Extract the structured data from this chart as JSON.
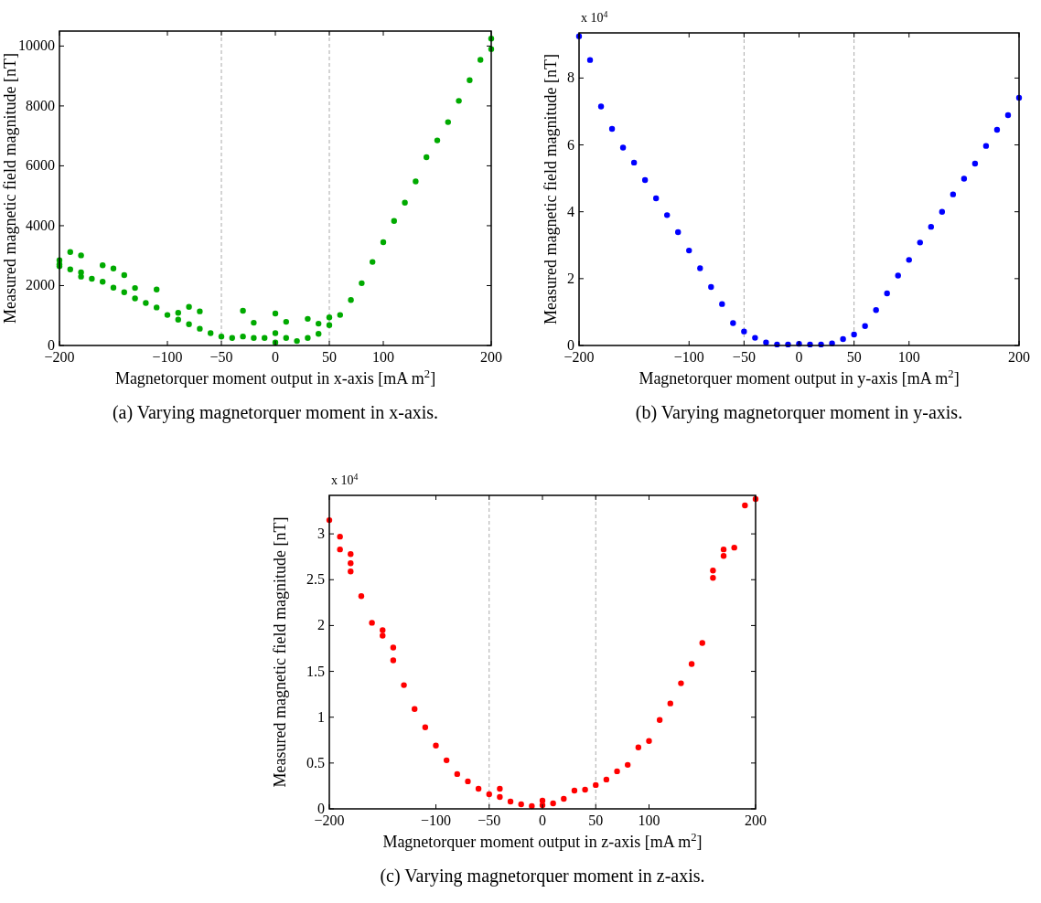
{
  "chart_data": [
    {
      "type": "scatter",
      "xlabel": "Magnetorquer moment output in x-axis [mA m$^{2}$]",
      "ylabel": "Measured magnetic field magnitude [nT]",
      "annotations": [
        "(a) Varying magnetorquer moment in x-axis."
      ],
      "xlim": [
        -200,
        200
      ],
      "ylim": [
        0,
        10500
      ],
      "xticks": [
        -200,
        -100,
        -50,
        0,
        50,
        100,
        200
      ],
      "yticks": [
        0,
        2000,
        4000,
        6000,
        8000,
        10000
      ],
      "marker": "circle",
      "grid": false,
      "ref_lines": [
        {
          "axis": "x",
          "value": -50,
          "color": "#aaaaaa",
          "line_style": "dashed"
        },
        {
          "axis": "x",
          "value": 50,
          "color": "#aaaaaa",
          "line_style": "dashed"
        }
      ],
      "series": [
        {
          "color": "#00aa00",
          "x": [
            -200,
            -200,
            -200,
            -190,
            -190,
            -180,
            -180,
            -180,
            -170,
            -160,
            -160,
            -150,
            -150,
            -140,
            -140,
            -130,
            -130,
            -120,
            -110,
            -110,
            -100,
            -90,
            -90,
            -80,
            -80,
            -70,
            -70,
            -60,
            -50,
            -40,
            -30,
            -30,
            -20,
            -20,
            -10,
            0,
            0,
            0,
            10,
            10,
            20,
            30,
            30,
            40,
            40,
            50,
            50,
            60,
            70,
            80,
            90,
            100,
            110,
            120,
            130,
            140,
            150,
            160,
            170,
            180,
            190,
            200,
            200
          ],
          "values": [
            2710,
            2850,
            2650,
            2540,
            3120,
            2440,
            2300,
            3010,
            2230,
            2130,
            2680,
            1930,
            2570,
            1780,
            2350,
            1570,
            1920,
            1420,
            1270,
            1870,
            1020,
            860,
            1090,
            710,
            1290,
            560,
            1140,
            410,
            300,
            250,
            300,
            1160,
            250,
            760,
            250,
            410,
            1070,
            100,
            250,
            790,
            150,
            250,
            890,
            390,
            730,
            680,
            940,
            1020,
            1520,
            2080,
            2790,
            3450,
            4160,
            4770,
            5480,
            6290,
            6850,
            7460,
            8170,
            8860,
            9540,
            10250,
            9900
          ]
        }
      ]
    },
    {
      "type": "scatter",
      "xlabel": "Magnetorquer moment output in y-axis [mA m$^{2}$]",
      "ylabel": "Measured magnetic field magnitude [nT]",
      "annotations": [
        "x 10$^{4}$",
        "(b) Varying magnetorquer moment in y-axis."
      ],
      "xlim": [
        -200,
        200
      ],
      "ylim": [
        0,
        9.35
      ],
      "xticks": [
        -200,
        -100,
        -50,
        0,
        50,
        100,
        200
      ],
      "yticks": [
        0,
        2,
        4,
        6,
        8
      ],
      "marker": "circle",
      "grid": false,
      "ref_lines": [
        {
          "axis": "x",
          "value": -50,
          "color": "#aaaaaa",
          "line_style": "dashed"
        },
        {
          "axis": "x",
          "value": 50,
          "color": "#aaaaaa",
          "line_style": "dashed"
        }
      ],
      "series": [
        {
          "color": "#0000ff",
          "x": [
            -200,
            -190,
            -180,
            -170,
            -160,
            -150,
            -140,
            -130,
            -120,
            -110,
            -100,
            -90,
            -80,
            -70,
            -60,
            -50,
            -40,
            -30,
            -20,
            -10,
            0,
            10,
            20,
            30,
            40,
            50,
            60,
            70,
            80,
            90,
            100,
            110,
            120,
            130,
            140,
            150,
            160,
            170,
            180,
            190,
            200
          ],
          "values": [
            9.25,
            8.54,
            7.15,
            6.48,
            5.92,
            5.47,
            4.95,
            4.4,
            3.9,
            3.39,
            2.84,
            2.31,
            1.75,
            1.24,
            0.67,
            0.42,
            0.23,
            0.09,
            0.03,
            0.03,
            0.05,
            0.03,
            0.03,
            0.06,
            0.19,
            0.33,
            0.58,
            1.06,
            1.56,
            2.09,
            2.56,
            3.08,
            3.55,
            4.0,
            4.52,
            4.99,
            5.44,
            5.97,
            6.45,
            6.89,
            7.41
          ]
        }
      ]
    },
    {
      "type": "scatter",
      "xlabel": "Magnetorquer moment output in z-axis [mA m$^{2}$]",
      "ylabel": "Measured magnetic field magnitude [nT]",
      "annotations": [
        "x 10$^{4}$",
        "(c) Varying magnetorquer moment in z-axis."
      ],
      "xlim": [
        -200,
        200
      ],
      "ylim": [
        0,
        3.42
      ],
      "xticks": [
        -200,
        -100,
        -50,
        0,
        50,
        100,
        200
      ],
      "yticks": [
        0,
        0.5,
        1,
        1.5,
        2,
        2.5,
        3
      ],
      "marker": "circle",
      "grid": false,
      "ref_lines": [
        {
          "axis": "x",
          "value": -50,
          "color": "#aaaaaa",
          "line_style": "dashed"
        },
        {
          "axis": "x",
          "value": 50,
          "color": "#aaaaaa",
          "line_style": "dashed"
        }
      ],
      "series": [
        {
          "color": "#ff0000",
          "x": [
            -200,
            -190,
            -190,
            -180,
            -180,
            -180,
            -170,
            -160,
            -150,
            -150,
            -140,
            -140,
            -130,
            -120,
            -110,
            -100,
            -90,
            -80,
            -70,
            -60,
            -50,
            -40,
            -40,
            -30,
            -20,
            -10,
            0,
            0,
            10,
            20,
            30,
            40,
            50,
            60,
            70,
            80,
            90,
            100,
            110,
            120,
            130,
            140,
            150,
            160,
            160,
            170,
            170,
            180,
            190,
            200
          ],
          "values": [
            3.15,
            2.83,
            2.97,
            2.68,
            2.78,
            2.59,
            2.32,
            2.03,
            1.89,
            1.95,
            1.62,
            1.76,
            1.35,
            1.09,
            0.89,
            0.69,
            0.53,
            0.38,
            0.3,
            0.22,
            0.16,
            0.13,
            0.22,
            0.08,
            0.05,
            0.03,
            0.04,
            0.09,
            0.06,
            0.11,
            0.2,
            0.21,
            0.26,
            0.32,
            0.41,
            0.48,
            0.67,
            0.74,
            0.97,
            1.15,
            1.37,
            1.58,
            1.81,
            2.6,
            2.52,
            2.83,
            2.76,
            2.85,
            3.31,
            3.38
          ]
        }
      ]
    }
  ]
}
